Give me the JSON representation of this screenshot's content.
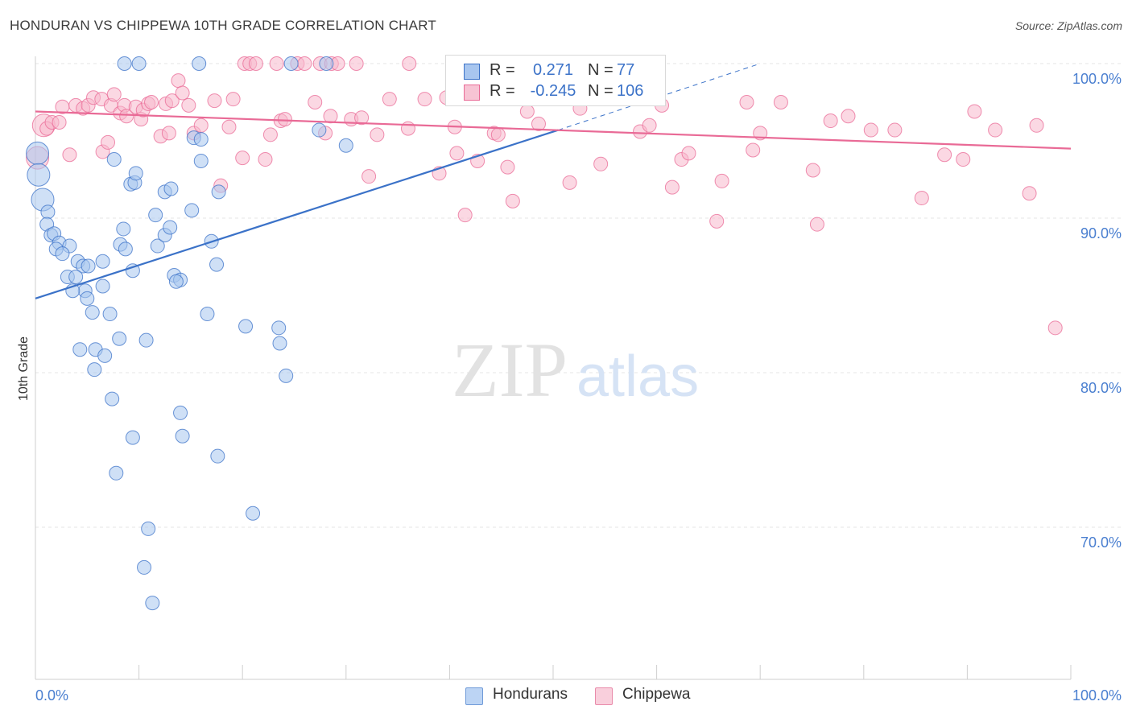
{
  "title": "HONDURAN VS CHIPPEWA 10TH GRADE CORRELATION CHART",
  "source": "Source: ZipAtlas.com",
  "watermark": {
    "zip": "ZIP",
    "atlas": "atlas"
  },
  "colors": {
    "blue": "#3b72c8",
    "blue_fill": "#a8c6ef",
    "pink": "#e96a96",
    "pink_fill": "#f7b8cc",
    "grid": "#e4e4e4",
    "axis_text": "#4a7fd0"
  },
  "legend": {
    "r_label": "R =",
    "n_label": "N =",
    "items": [
      {
        "series": "Hondurans",
        "r": "0.271",
        "n": "77"
      },
      {
        "series": "Chippewa",
        "r": "-0.245",
        "n": "106"
      }
    ]
  },
  "chart_data": {
    "type": "scatter",
    "ylabel": "10th Grade",
    "xlabel": "",
    "x_tick_labels": [
      "0.0%",
      "100.0%"
    ],
    "y_tick_labels": [
      "70.0%",
      "80.0%",
      "90.0%",
      "100.0%"
    ],
    "xlim": [
      0,
      100
    ],
    "ylim": [
      61,
      101
    ],
    "y_ticks": [
      70,
      80,
      90,
      100
    ],
    "grid": true,
    "legend_position": "top-center",
    "series": [
      {
        "name": "Hondurans",
        "color": "#3b72c8",
        "trend": {
          "x0": 0,
          "y0": 84.8,
          "x1": 50.5,
          "y1": 95.7,
          "dash_to_x": 70,
          "dash_to_y": 100
        },
        "points": [
          [
            0.2,
            94.2
          ],
          [
            0.3,
            92.8
          ],
          [
            0.7,
            91.2
          ],
          [
            1.2,
            90.4
          ],
          [
            1.1,
            89.6
          ],
          [
            1.5,
            88.9
          ],
          [
            1.8,
            89.0
          ],
          [
            2.3,
            88.4
          ],
          [
            2.0,
            88.0
          ],
          [
            3.3,
            88.2
          ],
          [
            2.6,
            87.7
          ],
          [
            4.1,
            87.2
          ],
          [
            4.6,
            86.9
          ],
          [
            5.1,
            86.9
          ],
          [
            6.5,
            87.2
          ],
          [
            3.1,
            86.2
          ],
          [
            3.9,
            86.2
          ],
          [
            6.5,
            85.6
          ],
          [
            4.8,
            85.3
          ],
          [
            3.6,
            85.3
          ],
          [
            5.0,
            84.8
          ],
          [
            5.5,
            83.9
          ],
          [
            7.2,
            83.8
          ],
          [
            8.2,
            88.3
          ],
          [
            8.5,
            89.3
          ],
          [
            8.7,
            88.0
          ],
          [
            9.4,
            86.6
          ],
          [
            11.8,
            88.2
          ],
          [
            12.5,
            88.9
          ],
          [
            13.0,
            89.4
          ],
          [
            11.6,
            90.2
          ],
          [
            12.5,
            91.7
          ],
          [
            13.1,
            91.9
          ],
          [
            15.1,
            90.5
          ],
          [
            13.4,
            86.3
          ],
          [
            14.0,
            86.0
          ],
          [
            13.6,
            85.9
          ],
          [
            17.0,
            88.5
          ],
          [
            17.5,
            87.0
          ],
          [
            16.6,
            83.8
          ],
          [
            8.1,
            82.2
          ],
          [
            10.7,
            82.1
          ],
          [
            4.3,
            81.5
          ],
          [
            5.8,
            81.5
          ],
          [
            6.7,
            81.1
          ],
          [
            5.7,
            80.2
          ],
          [
            7.4,
            78.3
          ],
          [
            9.4,
            75.8
          ],
          [
            14.0,
            77.4
          ],
          [
            14.2,
            75.9
          ],
          [
            7.8,
            73.5
          ],
          [
            17.6,
            74.6
          ],
          [
            10.9,
            69.9
          ],
          [
            10.5,
            67.4
          ],
          [
            11.3,
            65.1
          ],
          [
            21.0,
            70.9
          ],
          [
            23.6,
            81.9
          ],
          [
            23.5,
            82.9
          ],
          [
            24.2,
            79.8
          ],
          [
            20.3,
            83.0
          ],
          [
            7.6,
            93.8
          ],
          [
            9.2,
            92.2
          ],
          [
            9.6,
            92.3
          ],
          [
            9.7,
            92.9
          ],
          [
            15.3,
            95.2
          ],
          [
            16.0,
            95.1
          ],
          [
            16.0,
            93.7
          ],
          [
            17.7,
            91.7
          ],
          [
            27.4,
            95.7
          ],
          [
            30.0,
            94.7
          ],
          [
            8.6,
            100.0
          ],
          [
            10.0,
            100.0
          ],
          [
            15.8,
            100.0
          ],
          [
            24.7,
            100.0
          ],
          [
            28.1,
            100.0
          ],
          [
            40.7,
            100.0
          ],
          [
            48.5,
            100.0
          ]
        ]
      },
      {
        "name": "Chippewa",
        "color": "#e96a96",
        "trend": {
          "x0": 0,
          "y0": 96.9,
          "x1": 100,
          "y1": 94.5
        },
        "points": [
          [
            0.2,
            93.9
          ],
          [
            0.8,
            96.0
          ],
          [
            1.1,
            95.8
          ],
          [
            1.6,
            96.2
          ],
          [
            2.3,
            96.2
          ],
          [
            2.6,
            97.2
          ],
          [
            3.3,
            94.1
          ],
          [
            3.9,
            97.3
          ],
          [
            4.6,
            97.1
          ],
          [
            5.1,
            97.3
          ],
          [
            5.6,
            97.8
          ],
          [
            6.4,
            97.7
          ],
          [
            6.5,
            94.3
          ],
          [
            7.0,
            94.9
          ],
          [
            7.3,
            97.3
          ],
          [
            7.6,
            98.0
          ],
          [
            8.2,
            96.8
          ],
          [
            8.6,
            97.3
          ],
          [
            8.8,
            96.6
          ],
          [
            9.7,
            97.2
          ],
          [
            10.2,
            96.4
          ],
          [
            10.4,
            97.0
          ],
          [
            10.9,
            97.4
          ],
          [
            11.2,
            97.5
          ],
          [
            12.1,
            95.3
          ],
          [
            12.6,
            97.4
          ],
          [
            12.9,
            95.5
          ],
          [
            13.2,
            97.6
          ],
          [
            13.8,
            98.9
          ],
          [
            14.2,
            98.1
          ],
          [
            14.8,
            97.3
          ],
          [
            15.3,
            95.5
          ],
          [
            16.0,
            96.0
          ],
          [
            17.3,
            97.6
          ],
          [
            17.9,
            92.1
          ],
          [
            18.7,
            95.9
          ],
          [
            19.1,
            97.7
          ],
          [
            20.0,
            93.9
          ],
          [
            22.2,
            93.8
          ],
          [
            22.7,
            95.4
          ],
          [
            23.7,
            96.3
          ],
          [
            24.1,
            96.4
          ],
          [
            27.0,
            97.5
          ],
          [
            28.0,
            95.5
          ],
          [
            28.5,
            96.6
          ],
          [
            30.5,
            96.4
          ],
          [
            32.2,
            92.7
          ],
          [
            33.0,
            95.4
          ],
          [
            34.2,
            97.7
          ],
          [
            37.6,
            97.7
          ],
          [
            39.0,
            92.9
          ],
          [
            39.7,
            97.8
          ],
          [
            40.5,
            95.9
          ],
          [
            41.5,
            90.2
          ],
          [
            42.7,
            93.7
          ],
          [
            44.3,
            95.5
          ],
          [
            45.6,
            93.3
          ],
          [
            46.1,
            91.1
          ],
          [
            47.5,
            96.9
          ],
          [
            48.6,
            96.1
          ],
          [
            50.3,
            98.0
          ],
          [
            51.6,
            92.3
          ],
          [
            52.6,
            97.1
          ],
          [
            54.6,
            93.5
          ],
          [
            58.4,
            95.6
          ],
          [
            59.3,
            96.0
          ],
          [
            60.5,
            97.3
          ],
          [
            61.5,
            92.0
          ],
          [
            62.4,
            93.8
          ],
          [
            63.1,
            94.2
          ],
          [
            65.8,
            89.8
          ],
          [
            66.3,
            92.4
          ],
          [
            68.7,
            97.5
          ],
          [
            69.3,
            94.4
          ],
          [
            70.0,
            95.5
          ],
          [
            72.0,
            97.5
          ],
          [
            75.1,
            93.1
          ],
          [
            75.5,
            89.6
          ],
          [
            76.8,
            96.3
          ],
          [
            78.5,
            96.6
          ],
          [
            80.7,
            95.7
          ],
          [
            83.0,
            95.7
          ],
          [
            85.6,
            91.3
          ],
          [
            87.8,
            94.1
          ],
          [
            89.6,
            93.8
          ],
          [
            90.7,
            96.9
          ],
          [
            92.7,
            95.7
          ],
          [
            96.0,
            91.6
          ],
          [
            96.7,
            96.0
          ],
          [
            98.5,
            82.9
          ],
          [
            40.7,
            94.2
          ],
          [
            31.5,
            96.5
          ],
          [
            44.7,
            95.4
          ],
          [
            36.0,
            95.8
          ],
          [
            25.3,
            100.0
          ],
          [
            26.0,
            100.0
          ],
          [
            20.2,
            100.0
          ],
          [
            20.7,
            100.0
          ],
          [
            21.3,
            100.0
          ],
          [
            23.3,
            100.0
          ],
          [
            27.5,
            100.0
          ],
          [
            28.6,
            100.0
          ],
          [
            29.2,
            100.0
          ],
          [
            31.0,
            100.0
          ],
          [
            36.1,
            100.0
          ],
          [
            51.1,
            100.0
          ]
        ]
      }
    ]
  }
}
